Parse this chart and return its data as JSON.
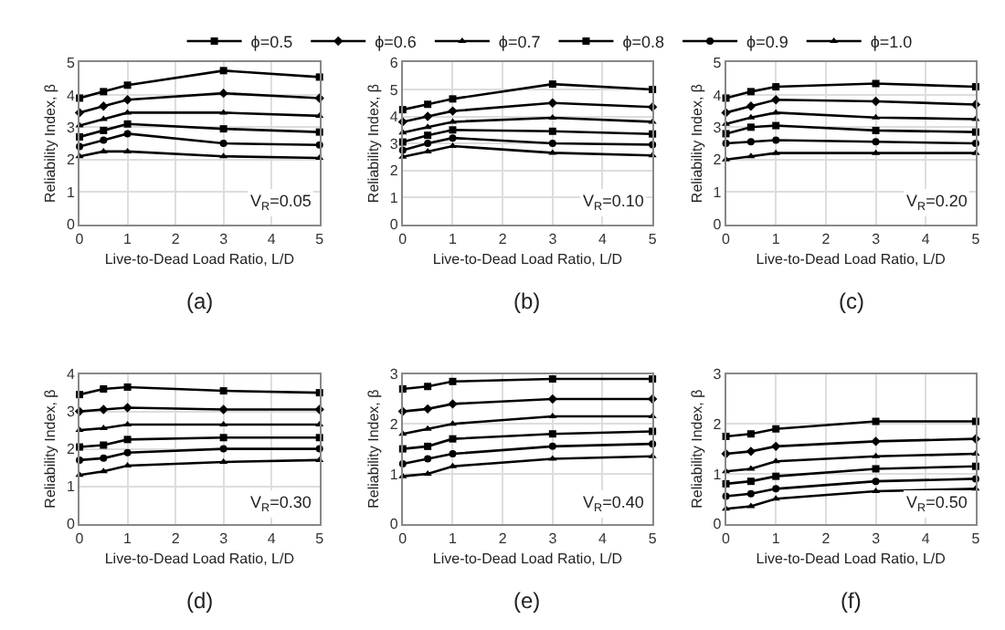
{
  "chart_data": [
    {
      "type": "line",
      "xlabel": "Live-to-Dead Load Ratio, L/D",
      "ylabel": "Reliability Index, β",
      "x": [
        0,
        0.5,
        1,
        3,
        5
      ],
      "xlim": [
        0,
        5
      ],
      "xticks": [
        0,
        1,
        2,
        3,
        4,
        5
      ],
      "ylim": [
        0,
        5
      ],
      "yticks": [
        0,
        1,
        2,
        3,
        4,
        5
      ],
      "grid": true,
      "legend": "top",
      "annotations": [
        "V$_{R}$=0.05",
        "(a)"
      ],
      "series": [
        {
          "name": "ϕ=0.5",
          "color": "#000000",
          "marker": "square",
          "values": [
            3.9,
            4.1,
            4.3,
            4.75,
            4.55
          ]
        },
        {
          "name": "ϕ=0.6",
          "color": "#000000",
          "marker": "diamond",
          "values": [
            3.45,
            3.65,
            3.85,
            4.05,
            3.9
          ]
        },
        {
          "name": "ϕ=0.7",
          "color": "#000000",
          "marker": "triangle",
          "values": [
            3.05,
            3.25,
            3.45,
            3.45,
            3.35
          ]
        },
        {
          "name": "ϕ=0.8",
          "color": "#000000",
          "marker": "square",
          "values": [
            2.7,
            2.9,
            3.1,
            2.95,
            2.85
          ]
        },
        {
          "name": "ϕ=0.9",
          "color": "#000000",
          "marker": "circle",
          "values": [
            2.4,
            2.6,
            2.8,
            2.5,
            2.45
          ]
        },
        {
          "name": "ϕ=1.0",
          "color": "#000000",
          "marker": "triangle",
          "values": [
            2.1,
            2.25,
            2.25,
            2.1,
            2.05
          ]
        }
      ]
    },
    {
      "type": "line",
      "xlabel": "Live-to-Dead Load Ratio, L/D",
      "ylabel": "Reliability Index, β",
      "x": [
        0,
        0.5,
        1,
        3,
        5
      ],
      "xlim": [
        0,
        5
      ],
      "xticks": [
        0,
        1,
        2,
        3,
        4,
        5
      ],
      "ylim": [
        0,
        6
      ],
      "yticks": [
        0,
        1,
        2,
        3,
        4,
        5,
        6
      ],
      "grid": true,
      "annotations": [
        "V$_{R}$=0.10",
        "(b)"
      ],
      "series": [
        {
          "color": "#000000",
          "marker": "square",
          "values": [
            4.25,
            4.45,
            4.65,
            5.2,
            5.0
          ]
        },
        {
          "color": "#000000",
          "marker": "diamond",
          "values": [
            3.8,
            4.0,
            4.2,
            4.5,
            4.35
          ]
        },
        {
          "color": "#000000",
          "marker": "triangle",
          "values": [
            3.4,
            3.6,
            3.8,
            3.95,
            3.8
          ]
        },
        {
          "color": "#000000",
          "marker": "square",
          "values": [
            3.05,
            3.3,
            3.5,
            3.45,
            3.35
          ]
        },
        {
          "color": "#000000",
          "marker": "circle",
          "values": [
            2.75,
            3.0,
            3.2,
            3.0,
            2.95
          ]
        },
        {
          "color": "#000000",
          "marker": "triangle",
          "values": [
            2.5,
            2.7,
            2.9,
            2.65,
            2.55
          ]
        }
      ]
    },
    {
      "type": "line",
      "xlabel": "Live-to-Dead Load Ratio, L/D",
      "ylabel": "Reliability Index, β",
      "x": [
        0,
        0.5,
        1,
        3,
        5
      ],
      "xlim": [
        0,
        5
      ],
      "xticks": [
        0,
        1,
        2,
        3,
        4,
        5
      ],
      "ylim": [
        0,
        5
      ],
      "yticks": [
        0,
        1,
        2,
        3,
        4,
        5
      ],
      "grid": true,
      "annotations": [
        "V$_{R}$=0.20",
        "(c)"
      ],
      "series": [
        {
          "color": "#000000",
          "marker": "square",
          "values": [
            3.9,
            4.1,
            4.25,
            4.35,
            4.25
          ]
        },
        {
          "color": "#000000",
          "marker": "diamond",
          "values": [
            3.45,
            3.65,
            3.85,
            3.8,
            3.7
          ]
        },
        {
          "color": "#000000",
          "marker": "triangle",
          "values": [
            3.1,
            3.3,
            3.45,
            3.3,
            3.25
          ]
        },
        {
          "color": "#000000",
          "marker": "square",
          "values": [
            2.8,
            3.0,
            3.05,
            2.9,
            2.85
          ]
        },
        {
          "color": "#000000",
          "marker": "circle",
          "values": [
            2.5,
            2.55,
            2.6,
            2.55,
            2.5
          ]
        },
        {
          "color": "#000000",
          "marker": "triangle",
          "values": [
            2.0,
            2.1,
            2.2,
            2.2,
            2.2
          ]
        }
      ]
    },
    {
      "type": "line",
      "xlabel": "Live-to-Dead Load Ratio, L/D",
      "ylabel": "Reliability Index, β",
      "x": [
        0,
        0.5,
        1,
        3,
        5
      ],
      "xlim": [
        0,
        5
      ],
      "xticks": [
        0,
        1,
        2,
        3,
        4,
        5
      ],
      "ylim": [
        0,
        4
      ],
      "yticks": [
        0,
        1,
        2,
        3,
        4
      ],
      "grid": true,
      "annotations": [
        "V$_{R}$=0.30",
        "(d)"
      ],
      "series": [
        {
          "color": "#000000",
          "marker": "square",
          "values": [
            3.45,
            3.6,
            3.65,
            3.55,
            3.5
          ]
        },
        {
          "color": "#000000",
          "marker": "diamond",
          "values": [
            3.0,
            3.05,
            3.1,
            3.05,
            3.05
          ]
        },
        {
          "color": "#000000",
          "marker": "triangle",
          "values": [
            2.5,
            2.55,
            2.65,
            2.65,
            2.65
          ]
        },
        {
          "color": "#000000",
          "marker": "square",
          "values": [
            2.05,
            2.1,
            2.25,
            2.3,
            2.3
          ]
        },
        {
          "color": "#000000",
          "marker": "circle",
          "values": [
            1.7,
            1.75,
            1.9,
            2.0,
            2.0
          ]
        },
        {
          "color": "#000000",
          "marker": "triangle",
          "values": [
            1.3,
            1.4,
            1.55,
            1.65,
            1.7
          ]
        }
      ]
    },
    {
      "type": "line",
      "xlabel": "Live-to-Dead Load Ratio, L/D",
      "ylabel": "Reliability Index, β",
      "x": [
        0,
        0.5,
        1,
        3,
        5
      ],
      "xlim": [
        0,
        5
      ],
      "xticks": [
        0,
        1,
        2,
        3,
        4,
        5
      ],
      "ylim": [
        0,
        3
      ],
      "yticks": [
        0,
        1,
        2,
        3
      ],
      "grid": true,
      "annotations": [
        "V$_{R}$=0.40",
        "(e)"
      ],
      "series": [
        {
          "color": "#000000",
          "marker": "square",
          "values": [
            2.7,
            2.75,
            2.85,
            2.9,
            2.9
          ]
        },
        {
          "color": "#000000",
          "marker": "diamond",
          "values": [
            2.25,
            2.3,
            2.4,
            2.5,
            2.5
          ]
        },
        {
          "color": "#000000",
          "marker": "triangle",
          "values": [
            1.8,
            1.9,
            2.0,
            2.15,
            2.15
          ]
        },
        {
          "color": "#000000",
          "marker": "square",
          "values": [
            1.5,
            1.55,
            1.7,
            1.8,
            1.85
          ]
        },
        {
          "color": "#000000",
          "marker": "circle",
          "values": [
            1.2,
            1.3,
            1.4,
            1.55,
            1.6
          ]
        },
        {
          "color": "#000000",
          "marker": "triangle",
          "values": [
            0.95,
            1.0,
            1.15,
            1.3,
            1.35
          ]
        }
      ]
    },
    {
      "type": "line",
      "xlabel": "Live-to-Dead Load Ratio, L/D",
      "ylabel": "Reliability Index, β",
      "x": [
        0,
        0.5,
        1,
        3,
        5
      ],
      "xlim": [
        0,
        5
      ],
      "xticks": [
        0,
        1,
        2,
        3,
        4,
        5
      ],
      "ylim": [
        0,
        3
      ],
      "yticks": [
        0,
        1,
        2,
        3
      ],
      "grid": true,
      "annotations": [
        "V$_{R}$=0.50",
        "(f)"
      ],
      "series": [
        {
          "color": "#000000",
          "marker": "square",
          "values": [
            1.75,
            1.8,
            1.9,
            2.05,
            2.05
          ]
        },
        {
          "color": "#000000",
          "marker": "diamond",
          "values": [
            1.4,
            1.45,
            1.55,
            1.65,
            1.7
          ]
        },
        {
          "color": "#000000",
          "marker": "triangle",
          "values": [
            1.05,
            1.1,
            1.25,
            1.35,
            1.4
          ]
        },
        {
          "color": "#000000",
          "marker": "square",
          "values": [
            0.8,
            0.85,
            0.95,
            1.1,
            1.15
          ]
        },
        {
          "color": "#000000",
          "marker": "circle",
          "values": [
            0.55,
            0.6,
            0.7,
            0.85,
            0.9
          ]
        },
        {
          "color": "#000000",
          "marker": "triangle",
          "values": [
            0.3,
            0.35,
            0.5,
            0.65,
            0.7
          ]
        }
      ]
    }
  ]
}
